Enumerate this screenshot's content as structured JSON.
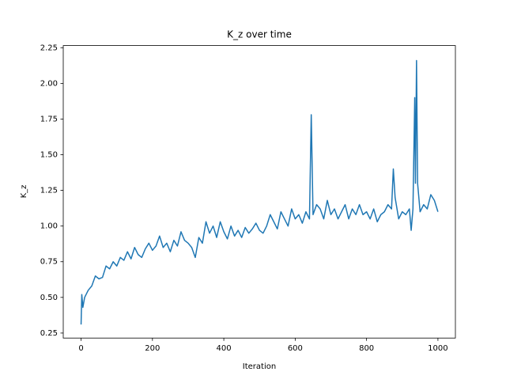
{
  "chart_data": {
    "type": "line",
    "title": "K_z over time",
    "x_label": "Iteration",
    "y_label": "K_z",
    "x": [
      0,
      2,
      5,
      10,
      20,
      30,
      40,
      50,
      60,
      70,
      80,
      90,
      100,
      110,
      120,
      130,
      140,
      150,
      160,
      170,
      180,
      190,
      200,
      210,
      220,
      230,
      240,
      250,
      260,
      270,
      280,
      290,
      300,
      310,
      320,
      330,
      340,
      350,
      360,
      370,
      380,
      390,
      400,
      410,
      420,
      430,
      440,
      450,
      460,
      470,
      480,
      490,
      500,
      510,
      520,
      530,
      540,
      550,
      560,
      570,
      580,
      590,
      600,
      610,
      620,
      630,
      640,
      645,
      650,
      660,
      670,
      680,
      690,
      700,
      710,
      720,
      730,
      740,
      750,
      760,
      770,
      780,
      790,
      800,
      810,
      820,
      830,
      840,
      850,
      860,
      870,
      875,
      880,
      890,
      900,
      910,
      920,
      925,
      930,
      935,
      937,
      940,
      943,
      950,
      960,
      970,
      980,
      990,
      1000
    ],
    "series": [
      {
        "name": "K_z",
        "color": "#1f77b4",
        "values": [
          0.31,
          0.52,
          0.43,
          0.5,
          0.55,
          0.58,
          0.65,
          0.63,
          0.64,
          0.72,
          0.7,
          0.75,
          0.72,
          0.78,
          0.76,
          0.82,
          0.77,
          0.85,
          0.8,
          0.78,
          0.84,
          0.88,
          0.83,
          0.86,
          0.93,
          0.85,
          0.88,
          0.82,
          0.9,
          0.86,
          0.96,
          0.9,
          0.88,
          0.85,
          0.78,
          0.92,
          0.88,
          1.03,
          0.95,
          1.0,
          0.92,
          1.03,
          0.96,
          0.91,
          1.0,
          0.93,
          0.97,
          0.92,
          0.99,
          0.95,
          0.98,
          1.02,
          0.97,
          0.95,
          1.0,
          1.08,
          1.03,
          0.98,
          1.1,
          1.05,
          1.0,
          1.12,
          1.05,
          1.08,
          1.02,
          1.1,
          1.05,
          1.78,
          1.08,
          1.15,
          1.12,
          1.05,
          1.18,
          1.08,
          1.12,
          1.05,
          1.1,
          1.15,
          1.05,
          1.12,
          1.08,
          1.15,
          1.08,
          1.1,
          1.05,
          1.12,
          1.03,
          1.08,
          1.1,
          1.15,
          1.12,
          1.4,
          1.2,
          1.05,
          1.1,
          1.08,
          1.12,
          0.97,
          1.12,
          1.9,
          1.3,
          2.16,
          1.3,
          1.1,
          1.15,
          1.12,
          1.22,
          1.18,
          1.1
        ]
      }
    ],
    "xlim": [
      -49.95,
      1048.95
    ],
    "ylim": [
      0.215,
      2.265
    ],
    "xticks": [
      0,
      200,
      400,
      600,
      800,
      1000
    ],
    "yticks": [
      {
        "value": 0.25,
        "label": "0.25"
      },
      {
        "value": 0.5,
        "label": "0.50"
      },
      {
        "value": 0.75,
        "label": "0.75"
      },
      {
        "value": 1.0,
        "label": "1.00"
      },
      {
        "value": 1.25,
        "label": "1.25"
      },
      {
        "value": 1.5,
        "label": "1.50"
      },
      {
        "value": 1.75,
        "label": "1.75"
      },
      {
        "value": 2.0,
        "label": "2.00"
      },
      {
        "value": 2.25,
        "label": "2.25"
      }
    ]
  }
}
